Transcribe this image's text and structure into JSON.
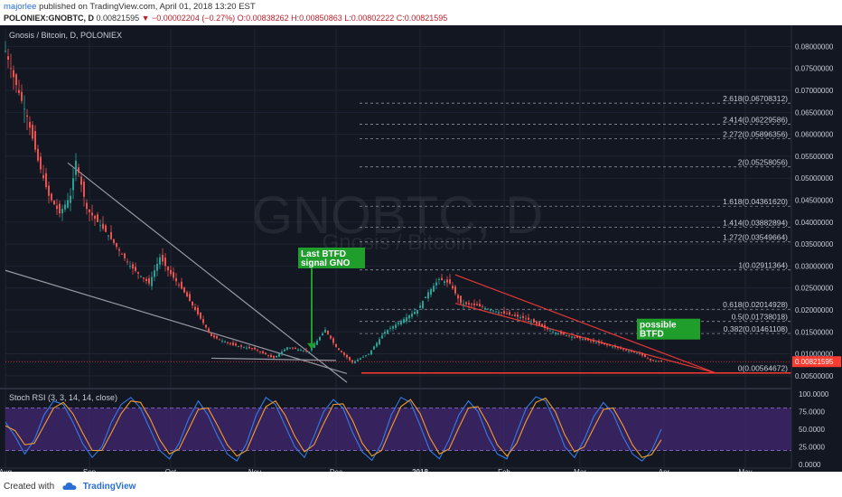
{
  "header": {
    "user": "majorlee",
    "published": "published on TradingView.com, April 01, 2018 13:20 EST",
    "symbol": "POLONIEX:GNOBTC, D",
    "last": "0.00821595",
    "change": "▼ −0.00002204 (−0.27%)",
    "ohlc": "O:0.00838262 H:0.00850863 L:0.00802222 C:0.00821595"
  },
  "footer": {
    "created_with": "Created with",
    "brand": "TradingView"
  },
  "colors": {
    "background": "#131722",
    "up": "#26a69a",
    "down": "#ef5350",
    "trendline": "#9598a1",
    "fib": "#8a8f99",
    "support": "#ff3b30",
    "wedge": "#e53935",
    "annotation_green": "#1f9e2c",
    "rsi_k": "#2f7ce8",
    "rsi_d": "#f39c2c",
    "rsi_band": "#4a2a7e"
  },
  "chart_data": [
    {
      "type": "candlestick",
      "title": "Gnosis / Bitcoin, D, POLONIEX",
      "watermark": "GNOBTC, D",
      "watermark_sub": "Gnosis / Bitcoin",
      "ylim": [
        0.0025,
        0.084
      ],
      "y_ticks": [
        "0.08000000",
        "0.07500000",
        "0.07000000",
        "0.06500000",
        "0.06000000",
        "0.05500000",
        "0.05000000",
        "0.04500000",
        "0.04000000",
        "0.03500000",
        "0.03000000",
        "0.02500000",
        "0.02000000",
        "0.01500000",
        "0.01000000",
        "0.00500000"
      ],
      "x_labels": [
        {
          "label": "Aug",
          "day": 0
        },
        {
          "label": "Sep",
          "day": 31
        },
        {
          "label": "Oct",
          "day": 61
        },
        {
          "label": "Nov",
          "day": 92
        },
        {
          "label": "Dec",
          "day": 122
        },
        {
          "label": "2018",
          "day": 153
        },
        {
          "label": "Feb",
          "day": 184
        },
        {
          "label": "Mar",
          "day": 212
        },
        {
          "label": "Apr",
          "day": 243
        },
        {
          "label": "May",
          "day": 273
        }
      ],
      "price_path": [
        [
          0,
          0.079
        ],
        [
          3,
          0.073
        ],
        [
          8,
          0.064
        ],
        [
          12,
          0.054
        ],
        [
          16,
          0.046
        ],
        [
          20,
          0.042
        ],
        [
          24,
          0.046
        ],
        [
          26,
          0.054
        ],
        [
          30,
          0.043
        ],
        [
          38,
          0.037
        ],
        [
          46,
          0.03
        ],
        [
          53,
          0.026
        ],
        [
          57,
          0.032
        ],
        [
          60,
          0.029
        ],
        [
          66,
          0.024
        ],
        [
          70,
          0.02
        ],
        [
          76,
          0.014
        ],
        [
          84,
          0.012
        ],
        [
          92,
          0.011
        ],
        [
          99,
          0.009
        ],
        [
          104,
          0.0115
        ],
        [
          112,
          0.0105
        ],
        [
          118,
          0.0155
        ],
        [
          122,
          0.0115
        ],
        [
          128,
          0.008
        ],
        [
          134,
          0.01
        ],
        [
          140,
          0.015
        ],
        [
          146,
          0.0175
        ],
        [
          152,
          0.02
        ],
        [
          156,
          0.024
        ],
        [
          160,
          0.027
        ],
        [
          164,
          0.026
        ],
        [
          168,
          0.0215
        ],
        [
          174,
          0.021
        ],
        [
          182,
          0.0195
        ],
        [
          192,
          0.018
        ],
        [
          202,
          0.015
        ],
        [
          212,
          0.0135
        ],
        [
          222,
          0.012
        ],
        [
          228,
          0.011
        ],
        [
          234,
          0.01
        ],
        [
          238,
          0.0085
        ],
        [
          242,
          0.00821595
        ]
      ],
      "fib_levels": [
        {
          "label": "2.618(0.06708312)",
          "value": 0.06708312
        },
        {
          "label": "2.414(0.06229586)",
          "value": 0.06229586
        },
        {
          "label": "2.272(0.05896356)",
          "value": 0.05896356
        },
        {
          "label": "2(0.05258056)",
          "value": 0.05258056
        },
        {
          "label": "1.618(0.04361620)",
          "value": 0.0436162
        },
        {
          "label": "1.414(0.03882894)",
          "value": 0.03882894
        },
        {
          "label": "1.272(0.03549664)",
          "value": 0.03549664
        },
        {
          "label": "1(0.02911364)",
          "value": 0.02911364
        },
        {
          "label": "0.618(0.02014928)",
          "value": 0.02014928
        },
        {
          "label": "0.5(0.01738018)",
          "value": 0.01738018
        },
        {
          "label": "0.382(0.01461108)",
          "value": 0.01461108
        },
        {
          "label": "0(0.00564672)",
          "value": 0.00564672
        }
      ],
      "last_price": "0.00821595",
      "last_value": 0.00821595,
      "support_value": 0.00564672,
      "annotations": [
        {
          "text": [
            "Last BTFD",
            "signal GNO"
          ],
          "day": 108,
          "value": 0.0342,
          "arrow_to_day": 113,
          "arrow_to_value": 0.011
        },
        {
          "text": [
            "possible",
            "BTFD"
          ],
          "day": 233,
          "value": 0.018
        }
      ],
      "trendlines": [
        {
          "from": [
            23,
            0.0535
          ],
          "to": [
            126,
            0.0035
          ]
        },
        {
          "from": [
            0,
            0.029
          ],
          "to": [
            126,
            0.0055
          ]
        },
        {
          "from": [
            76,
            0.009
          ],
          "to": [
            122,
            0.0085
          ]
        }
      ],
      "wedge": [
        {
          "from": [
            166,
            0.028
          ],
          "to": [
            262,
            0.00564672
          ]
        },
        {
          "from": [
            166,
            0.0215
          ],
          "to": [
            262,
            0.00564672
          ]
        }
      ]
    },
    {
      "type": "line",
      "title": "Stoch RSI (3, 3, 14, 14, close)",
      "ylim": [
        -5,
        105
      ],
      "y_ticks": [
        "100.0000",
        "75.0000",
        "50.0000",
        "25.0000",
        "0.0000"
      ],
      "bands": [
        20,
        80
      ],
      "series": [
        {
          "values": [
            60,
            40,
            15,
            35,
            70,
            90,
            85,
            60,
            30,
            10,
            25,
            60,
            85,
            95,
            80,
            50,
            20,
            8,
            30,
            65,
            90,
            70,
            40,
            15,
            5,
            30,
            70,
            95,
            85,
            55,
            25,
            10,
            40,
            75,
            92,
            80,
            45,
            18,
            6,
            30,
            70,
            95,
            88,
            55,
            20,
            8,
            35,
            70,
            90,
            75,
            40,
            15,
            8,
            45,
            80,
            96,
            90,
            60,
            25,
            10,
            35,
            68,
            88,
            72,
            40,
            15,
            5,
            20,
            50
          ]
        },
        {
          "values": [
            55,
            48,
            28,
            30,
            55,
            80,
            88,
            72,
            45,
            20,
            20,
            45,
            72,
            90,
            88,
            65,
            35,
            15,
            22,
            50,
            78,
            80,
            55,
            28,
            12,
            20,
            52,
            82,
            90,
            70,
            40,
            18,
            28,
            58,
            85,
            86,
            62,
            30,
            12,
            20,
            52,
            82,
            92,
            72,
            38,
            15,
            22,
            52,
            80,
            82,
            58,
            28,
            12,
            30,
            62,
            88,
            94,
            75,
            42,
            18,
            25,
            52,
            78,
            80,
            56,
            28,
            10,
            14,
            35
          ]
        }
      ]
    }
  ]
}
